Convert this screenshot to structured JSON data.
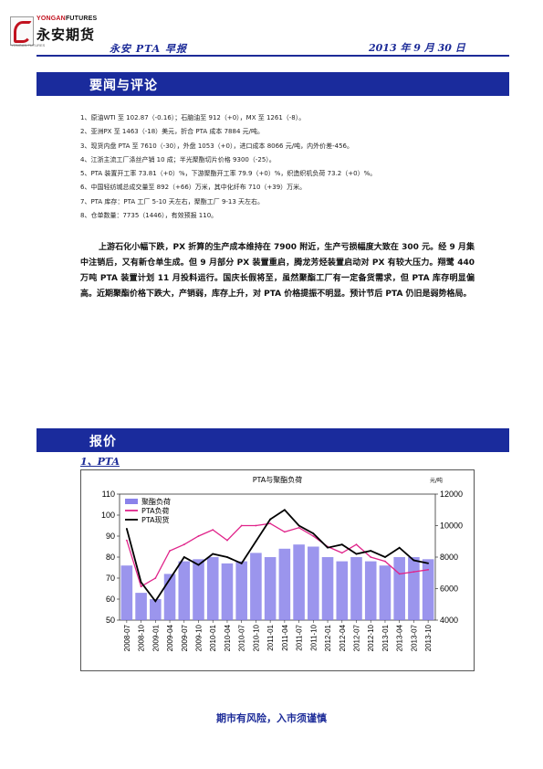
{
  "header": {
    "logo_en_1": "YONGAN",
    "logo_en_2": "FUTURES",
    "logo_cn": "永安期货",
    "logo_sub": "YONGAN FUTURES",
    "report_title": "永安 PTA 早报",
    "date": "2013 年 9 月 30 日"
  },
  "sections": {
    "news_title": "要闻与评论",
    "price_title": "报价"
  },
  "news_items": [
    "1、原油WTI 至 102.87（-0.16）；石脑油至 912（+0），MX 至 1261（-8）。",
    "2、亚洲PX 至 1463（-18）美元，折合 PTA 成本 7884 元/吨。",
    "3、现货内盘 PTA 至 7610（-30），外盘 1053（+0），进口成本 8066 元/吨，内外价差-456。",
    "4、江浙主流工厂涤丝产销 10 成；半光聚酯切片价格 9300（-25）。",
    "5、PTA 装置开工率 73.81（+0）%，下游聚酯开工率 79.9（+0）%，织造织机负荷 73.2（+0）%。",
    "6、中国轻纺城总成交量至 892（+66）万米，其中化纤布 710（+39）万米。",
    "7、PTA 库存：PTA 工厂 5-10 天左右，聚酯工厂 9-13 天左右。",
    "8、仓单数量：7735（1446），有效预报 110。"
  ],
  "commentary": "上游石化小幅下跌，PX 折算的生产成本维持在 7900 附近，生产亏损幅度大致在 300 元。经 9 月集中注销后，又有新仓单生成。但 9 月部分 PX 装置重启，腾龙芳烃装置启动对 PX 有较大压力。翔鹭 440 万吨 PTA 装置计划 11 月投料运行。国庆长假将至，虽然聚酯工厂有一定备货需求，但 PTA 库存明显偏高。近期聚酯价格下跌大，产销弱，库存上升，对 PTA 价格提振不明显。预计节后 PTA 仍旧是弱势格局。",
  "price_subheading": "1、PTA",
  "chart_data": {
    "type": "line",
    "title": "PTA与聚酯负荷",
    "y2_unit": "元/吨",
    "legend_placement": "top-left",
    "ylim_left": [
      50,
      110
    ],
    "ylim_right": [
      4000,
      12000
    ],
    "yticks_left": [
      50,
      60,
      70,
      80,
      90,
      100,
      110
    ],
    "yticks_right": [
      4000,
      6000,
      8000,
      10000,
      12000
    ],
    "categories": [
      "2008-07",
      "2008-10",
      "2009-01",
      "2009-04",
      "2009-07",
      "2009-10",
      "2010-01",
      "2010-04",
      "2010-07",
      "2010-10",
      "2011-01",
      "2011-04",
      "2011-07",
      "2011-10",
      "2012-01",
      "2012-04",
      "2012-07",
      "2012-10",
      "2013-01",
      "2013-04",
      "2013-07",
      "2013-10"
    ],
    "series": [
      {
        "name": "聚酯负荷",
        "axis": "left",
        "render": "bar",
        "color": "#8a82ea",
        "values": [
          76,
          63,
          60,
          72,
          78,
          79,
          80,
          77,
          78,
          82,
          80,
          84,
          86,
          85,
          80,
          78,
          80,
          78,
          76,
          80,
          80,
          79
        ]
      },
      {
        "name": "PTA负荷",
        "axis": "left",
        "render": "line",
        "color": "#e0248a",
        "values": [
          88,
          66,
          70,
          83,
          86,
          90,
          93,
          88,
          95,
          95,
          96,
          92,
          94,
          90,
          85,
          82,
          86,
          80,
          78,
          72,
          73,
          74
        ]
      },
      {
        "name": "PTA现货",
        "axis": "right",
        "render": "line",
        "color": "#000000",
        "values": [
          9800,
          6400,
          5200,
          6600,
          8000,
          7500,
          8200,
          8000,
          7600,
          9000,
          10400,
          11000,
          10000,
          9500,
          8600,
          8800,
          8200,
          8400,
          8000,
          8600,
          7800,
          7610
        ]
      }
    ]
  },
  "footer": "期市有风险，入市须谨慎"
}
